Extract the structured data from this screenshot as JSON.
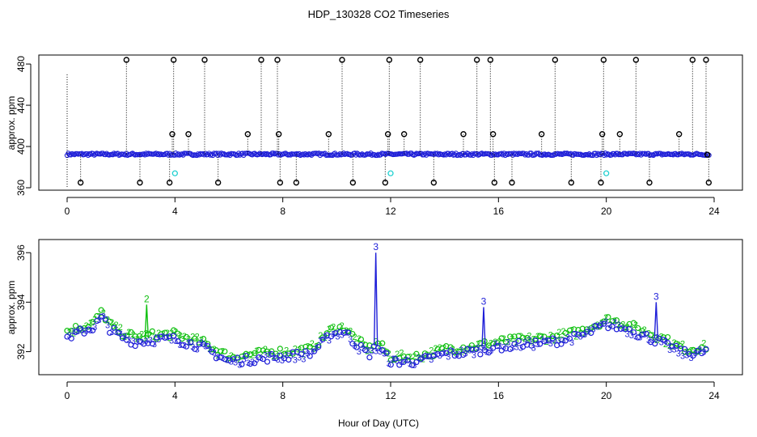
{
  "title": "HDP_130328  CO2 Timeseries",
  "xlabel": "Hour of Day (UTC)",
  "colors": {
    "black": "#000000",
    "blue": "#1f1fd8",
    "green": "#10c010",
    "cyan": "#20d0d0"
  },
  "chart_data": [
    {
      "type": "scatter",
      "ylabel": "approx. ppm",
      "xlim": [
        0,
        24
      ],
      "ylim": [
        360,
        485
      ],
      "xticks": [
        "0",
        "4",
        "8",
        "12",
        "16",
        "20",
        "24"
      ],
      "yticks": [
        "360",
        "400",
        "440",
        "480"
      ],
      "baseline_ppm": 392.5,
      "series": [
        {
          "color": "black",
          "marker": "circle",
          "values_desc": "out-of-range flag points",
          "x": [
            0.5,
            2.2,
            2.7,
            3.8,
            3.9,
            3.95,
            4.5,
            5.1,
            5.6,
            6.7,
            7.2,
            7.8,
            7.85,
            7.9,
            8.5,
            9.7,
            10.2,
            10.6,
            11.8,
            11.9,
            11.95,
            12.5,
            13.1,
            13.6,
            14.7,
            15.2,
            15.7,
            15.8,
            15.85,
            16.5,
            17.6,
            18.1,
            18.7,
            19.8,
            19.85,
            19.9,
            20.5,
            21.1,
            21.6,
            22.7,
            23.2,
            23.7,
            23.75,
            23.8
          ],
          "y": [
            365,
            484,
            365,
            365,
            412,
            484,
            412,
            484,
            365,
            412,
            484,
            484,
            412,
            365,
            365,
            412,
            484,
            365,
            365,
            412,
            484,
            412,
            484,
            365,
            412,
            484,
            484,
            412,
            365,
            365,
            412,
            484,
            365,
            365,
            412,
            484,
            412,
            484,
            365,
            412,
            484,
            484,
            392,
            365
          ]
        },
        {
          "color": "cyan",
          "marker": "circle",
          "x": [
            4.0,
            12.0,
            20.0
          ],
          "y": [
            374,
            374,
            374
          ]
        }
      ]
    },
    {
      "type": "line",
      "ylabel": "approx. ppm",
      "xlim": [
        0,
        24
      ],
      "ylim": [
        391.2,
        396.4
      ],
      "xticks": [
        "0",
        "4",
        "8",
        "12",
        "16",
        "20",
        "24"
      ],
      "yticks": [
        "392",
        "394",
        "396"
      ],
      "marker_labels": [
        "2",
        "3"
      ],
      "profile_x": [
        0,
        1.0,
        1.3,
        1.6,
        2.0,
        2.5,
        3.5,
        4.0,
        5.0,
        6.0,
        7.0,
        7.8,
        8.0,
        9.0,
        9.8,
        10.3,
        10.8,
        11.2,
        11.5,
        12.0,
        13.0,
        14.0,
        15.0,
        16.0,
        17.0,
        18.0,
        19.0,
        20.0,
        20.5,
        21.0,
        22.0,
        22.5,
        23.0,
        23.7
      ],
      "profile_y": [
        392.7,
        393.1,
        393.5,
        393.0,
        392.7,
        392.5,
        392.6,
        392.6,
        392.3,
        391.7,
        391.8,
        391.9,
        391.9,
        392.0,
        392.8,
        392.9,
        392.3,
        392.0,
        392.3,
        391.7,
        391.7,
        392.0,
        392.1,
        392.3,
        392.4,
        392.5,
        392.7,
        393.2,
        393.1,
        392.9,
        392.5,
        392.2,
        392.0,
        392.1
      ],
      "spikes": [
        {
          "x": 11.45,
          "y": 396.0,
          "label": "3",
          "series": "3"
        },
        {
          "x": 15.45,
          "y": 393.8,
          "label": "3",
          "series": "3"
        },
        {
          "x": 21.85,
          "y": 394.0,
          "label": "3",
          "series": "3"
        },
        {
          "x": 2.95,
          "y": 393.9,
          "label": "2",
          "series": "2"
        }
      ],
      "series": [
        {
          "name": "2",
          "color": "green",
          "offset": 0.1
        },
        {
          "name": "3",
          "color": "blue",
          "offset": -0.1
        }
      ]
    }
  ]
}
